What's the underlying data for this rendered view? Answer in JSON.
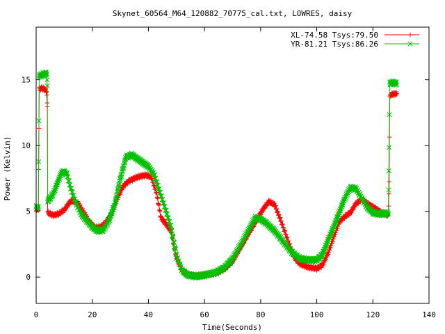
{
  "chart_data": {
    "type": "line",
    "title": "Skynet_60564_M64_120882_70775_cal.txt, LOWRES, daisy",
    "xlabel": "Time(Seconds)",
    "ylabel": "Power (Kelvin)",
    "xlim": [
      0,
      140
    ],
    "ylim": [
      -2,
      19
    ],
    "x_ticks": [
      0,
      20,
      40,
      60,
      80,
      100,
      120,
      140
    ],
    "y_ticks": [
      0,
      5,
      10,
      15
    ],
    "grid": false,
    "legend_position": "top-right",
    "series": [
      {
        "name": "XL-74.58 Tsys:79.50",
        "color": "#ff0000",
        "marker": "plus",
        "points": [
          [
            0.0,
            5.1
          ],
          [
            0.8,
            5.2
          ],
          [
            1.1,
            14.3
          ],
          [
            2.0,
            14.35
          ],
          [
            3.0,
            14.3
          ],
          [
            3.7,
            14.1
          ],
          [
            4.0,
            13.0
          ],
          [
            4.1,
            4.9
          ],
          [
            6.0,
            4.7
          ],
          [
            8.0,
            4.8
          ],
          [
            10.0,
            5.1
          ],
          [
            12.0,
            5.7
          ],
          [
            13.0,
            5.8
          ],
          [
            15.0,
            5.6
          ],
          [
            17.0,
            4.9
          ],
          [
            19.0,
            4.2
          ],
          [
            21.0,
            3.75
          ],
          [
            23.0,
            3.8
          ],
          [
            25.0,
            4.2
          ],
          [
            27.0,
            4.9
          ],
          [
            29.0,
            6.0
          ],
          [
            31.0,
            6.9
          ],
          [
            33.0,
            7.3
          ],
          [
            36.0,
            7.6
          ],
          [
            39.0,
            7.75
          ],
          [
            41.0,
            7.6
          ],
          [
            43.0,
            6.3
          ],
          [
            44.5,
            4.5
          ],
          [
            46.0,
            4.1
          ],
          [
            48.0,
            3.5
          ],
          [
            50.0,
            1.5
          ],
          [
            52.0,
            0.5
          ],
          [
            54.0,
            0.2
          ],
          [
            57.0,
            0.1
          ],
          [
            60.0,
            0.15
          ],
          [
            64.0,
            0.3
          ],
          [
            67.0,
            0.6
          ],
          [
            70.0,
            1.2
          ],
          [
            73.0,
            2.3
          ],
          [
            76.0,
            3.4
          ],
          [
            79.0,
            4.5
          ],
          [
            81.0,
            5.2
          ],
          [
            83.0,
            5.75
          ],
          [
            85.0,
            5.5
          ],
          [
            87.0,
            4.4
          ],
          [
            90.0,
            2.6
          ],
          [
            92.0,
            1.5
          ],
          [
            94.0,
            1.0
          ],
          [
            97.0,
            0.75
          ],
          [
            100.0,
            0.65
          ],
          [
            102.0,
            0.9
          ],
          [
            104.0,
            1.8
          ],
          [
            106.0,
            3.0
          ],
          [
            108.0,
            4.2
          ],
          [
            110.0,
            4.6
          ],
          [
            112.0,
            4.9
          ],
          [
            114.0,
            5.6
          ],
          [
            116.0,
            5.9
          ],
          [
            118.0,
            5.6
          ],
          [
            121.0,
            5.2
          ],
          [
            123.0,
            4.9
          ],
          [
            125.5,
            4.7
          ],
          [
            125.8,
            7.2
          ],
          [
            126.0,
            13.8
          ],
          [
            127.0,
            13.9
          ],
          [
            128.5,
            13.95
          ]
        ]
      },
      {
        "name": "YR-81.21 Tsys:86.26",
        "color": "#00c000",
        "marker": "cross",
        "points": [
          [
            0.0,
            5.3
          ],
          [
            0.8,
            5.3
          ],
          [
            1.1,
            15.3
          ],
          [
            2.0,
            15.35
          ],
          [
            3.0,
            15.45
          ],
          [
            3.8,
            15.5
          ],
          [
            4.0,
            14.4
          ],
          [
            4.1,
            5.8
          ],
          [
            5.0,
            6.0
          ],
          [
            6.0,
            6.3
          ],
          [
            7.0,
            6.8
          ],
          [
            8.0,
            7.4
          ],
          [
            9.0,
            7.9
          ],
          [
            10.0,
            8.0
          ],
          [
            11.0,
            7.8
          ],
          [
            12.0,
            7.0
          ],
          [
            14.0,
            5.7
          ],
          [
            16.0,
            4.8
          ],
          [
            18.0,
            4.3
          ],
          [
            20.0,
            3.8
          ],
          [
            22.0,
            3.5
          ],
          [
            24.0,
            3.6
          ],
          [
            26.0,
            4.3
          ],
          [
            28.0,
            5.5
          ],
          [
            30.0,
            7.5
          ],
          [
            32.0,
            9.1
          ],
          [
            34.0,
            9.3
          ],
          [
            36.0,
            9.0
          ],
          [
            38.0,
            8.7
          ],
          [
            40.0,
            8.4
          ],
          [
            42.0,
            7.8
          ],
          [
            44.0,
            6.5
          ],
          [
            46.0,
            5.2
          ],
          [
            48.0,
            3.8
          ],
          [
            50.0,
            1.6
          ],
          [
            52.0,
            0.5
          ],
          [
            54.0,
            0.15
          ],
          [
            57.0,
            0.05
          ],
          [
            60.0,
            0.15
          ],
          [
            64.0,
            0.35
          ],
          [
            67.0,
            0.7
          ],
          [
            70.0,
            1.4
          ],
          [
            73.0,
            2.5
          ],
          [
            76.0,
            3.7
          ],
          [
            78.0,
            4.5
          ],
          [
            80.0,
            4.4
          ],
          [
            82.0,
            4.1
          ],
          [
            85.0,
            3.5
          ],
          [
            88.0,
            2.7
          ],
          [
            91.0,
            1.9
          ],
          [
            94.0,
            1.4
          ],
          [
            97.0,
            1.3
          ],
          [
            100.0,
            1.3
          ],
          [
            102.0,
            1.7
          ],
          [
            104.0,
            2.8
          ],
          [
            106.0,
            3.8
          ],
          [
            108.0,
            4.9
          ],
          [
            110.0,
            6.0
          ],
          [
            112.0,
            6.8
          ],
          [
            114.0,
            6.7
          ],
          [
            116.0,
            6.0
          ],
          [
            118.0,
            5.3
          ],
          [
            120.0,
            4.9
          ],
          [
            122.0,
            4.8
          ],
          [
            125.5,
            4.85
          ],
          [
            125.8,
            9.9
          ],
          [
            126.0,
            14.7
          ],
          [
            127.0,
            14.8
          ],
          [
            128.5,
            14.7
          ]
        ]
      }
    ]
  }
}
